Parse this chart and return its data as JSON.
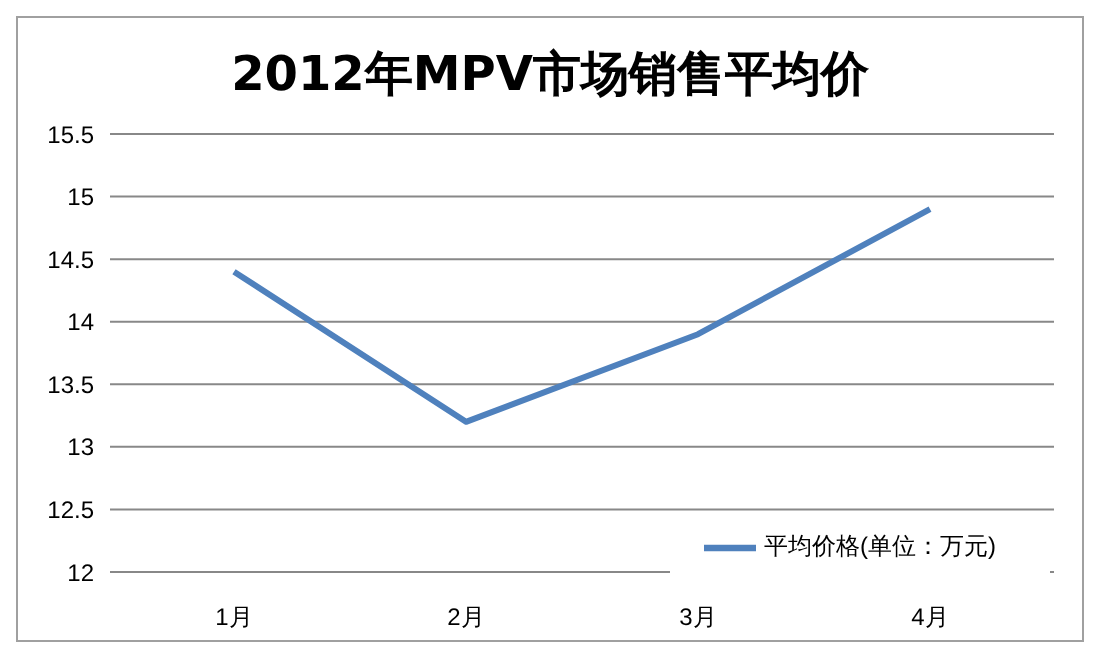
{
  "chart_data": {
    "type": "line",
    "title": "2012年MPV市场销售平均价",
    "categories": [
      "1月",
      "2月",
      "3月",
      "4月"
    ],
    "series": [
      {
        "name": "平均价格(单位：万元)",
        "color": "#4f81bd",
        "values": [
          14.4,
          13.2,
          13.9,
          14.9
        ]
      }
    ],
    "ylim": [
      12,
      15.5
    ],
    "yticks": [
      12,
      12.5,
      13,
      13.5,
      14,
      14.5,
      15,
      15.5
    ],
    "grid": "y",
    "legend": "bottom right",
    "marker": "none",
    "line_style": "solid"
  }
}
